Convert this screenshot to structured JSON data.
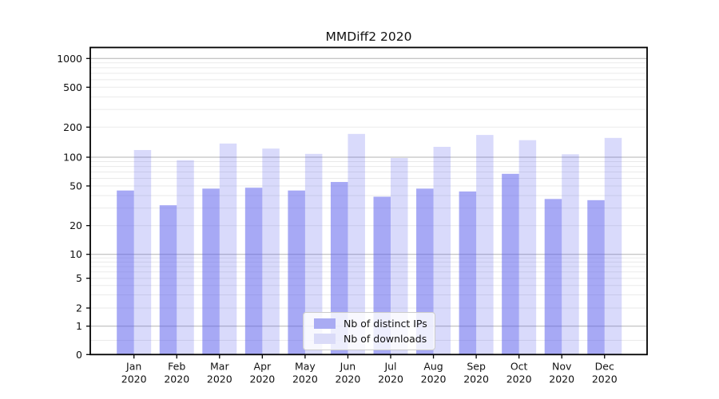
{
  "chart_data": {
    "type": "bar",
    "title": "MMDiff2 2020",
    "x_tick_months": [
      "Jan",
      "Feb",
      "Mar",
      "Apr",
      "May",
      "Jun",
      "Jul",
      "Aug",
      "Sep",
      "Oct",
      "Nov",
      "Dec"
    ],
    "x_tick_year": "2020",
    "categories": [
      "Jan 2020",
      "Feb 2020",
      "Mar 2020",
      "Apr 2020",
      "May 2020",
      "Jun 2020",
      "Jul 2020",
      "Aug 2020",
      "Sep 2020",
      "Oct 2020",
      "Nov 2020",
      "Dec 2020"
    ],
    "series": [
      {
        "name": "Nb of distinct IPs",
        "swatch_color": "#a9abf3",
        "values": [
          45,
          32,
          47,
          48,
          45,
          55,
          39,
          47,
          44,
          67,
          37,
          36
        ]
      },
      {
        "name": "Nb of downloads",
        "swatch_color": "#dadbf8",
        "values": [
          118,
          93,
          137,
          122,
          108,
          171,
          98,
          127,
          167,
          148,
          107,
          156
        ]
      }
    ],
    "yticks": [
      0,
      1,
      2,
      5,
      10,
      20,
      50,
      100,
      200,
      500,
      1000
    ],
    "yscale": "log-like with linear 0-1 segment",
    "ylim": [
      0,
      1400
    ],
    "grid": "horizontal only",
    "legend_position": "lower center inside plot",
    "base_bar_color": "#5356ec",
    "bar_alpha_distinct_ips": 0.51,
    "bar_alpha_downloads": 0.22,
    "grid_minor_color": "#eaeaea",
    "grid_major_color": "#b3b3b3"
  }
}
